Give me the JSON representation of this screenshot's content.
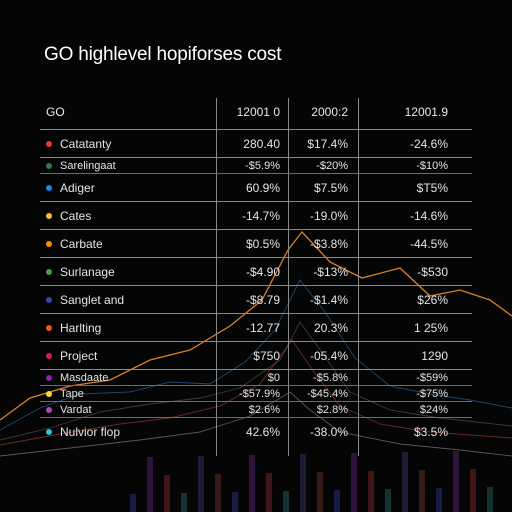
{
  "title": "GO highlevel hopiforses cost",
  "table": {
    "header": [
      "GO",
      "12001 0",
      "2000:2",
      "12001.9"
    ],
    "rows": [
      {
        "label": "Catatanty",
        "color": "#e53935",
        "v1": "280.40",
        "v2": "$17.4%",
        "v3": "-24.6%",
        "tight": false
      },
      {
        "label": "Sarelingaat",
        "color": "#2e7d4f",
        "v1": "-$5.9%",
        "v2": "-$20%",
        "v3": "-$10%",
        "tight": true
      },
      {
        "label": "Adiger",
        "color": "#1e88e5",
        "v1": "60.9%",
        "v2": "$7.5%",
        "v3": "$T5%",
        "tight": false
      },
      {
        "label": "Cates",
        "color": "#fbc02d",
        "v1": "-14.7%",
        "v2": "-19.0%",
        "v3": "-14.6%",
        "tight": false
      },
      {
        "label": "Carbate",
        "color": "#fb8c00",
        "v1": "$0.5%",
        "v2": "-$3.8%",
        "v3": "-44.5%",
        "tight": false
      },
      {
        "label": "Surlanage",
        "color": "#43a047",
        "v1": "-$4.90",
        "v2": "-$13%",
        "v3": "-$530",
        "tight": false
      },
      {
        "label": "Sanglet and",
        "color": "#3949ab",
        "v1": "-$8.79",
        "v2": "-$1.4%",
        "v3": "$26%",
        "tight": false
      },
      {
        "label": "Harlting",
        "color": "#f4511e",
        "v1": "-12.77",
        "v2": "20.3%",
        "v3": "1 25%",
        "tight": false
      },
      {
        "label": "Project",
        "color": "#d81b60",
        "v1": "$750",
        "v2": "-05.4%",
        "v3": "1290",
        "tight": false
      },
      {
        "label": "Masdaate",
        "color": "#8e24aa",
        "v1": "$0",
        "v2": "-$5.8%",
        "v3": "-$59%",
        "tight": true
      },
      {
        "label": "Tape",
        "color": "#fdd835",
        "v1": "-$57.9%",
        "v2": "-$45.4%",
        "v3": "-$75%",
        "tight": true
      },
      {
        "label": "Vardat",
        "color": "#ab47bc",
        "v1": "$2.6%",
        "v2": "$2.8%",
        "v3": "$24%",
        "tight": true
      },
      {
        "label": "Nulvior flop",
        "color": "#26c6da",
        "v1": "42.6%",
        "v2": "-38.0%",
        "v3": "$3.5%",
        "tight": false
      }
    ]
  },
  "chart_data": {
    "type": "table",
    "columns": [
      "GO",
      "12001 0",
      "2000:2",
      "12001.9"
    ],
    "rows": [
      [
        "Catatanty",
        "280.40",
        "$17.4%",
        "-24.6%"
      ],
      [
        "Sarelingaat",
        "-$5.9%",
        "-$20%",
        "-$10%"
      ],
      [
        "Adiger",
        "60.9%",
        "$7.5%",
        "$T5%"
      ],
      [
        "Cates",
        "-14.7%",
        "-19.0%",
        "-14.6%"
      ],
      [
        "Carbate",
        "$0.5%",
        "-$3.8%",
        "-44.5%"
      ],
      [
        "Surlanage",
        "-$4.90",
        "-$13%",
        "-$530"
      ],
      [
        "Sanglet and",
        "-$8.79",
        "-$1.4%",
        "$26%"
      ],
      [
        "Harlting",
        "-12.77",
        "20.3%",
        "1 25%"
      ],
      [
        "Project",
        "$750",
        "-05.4%",
        "1290"
      ],
      [
        "Masdaate",
        "$0",
        "-$5.8%",
        "-$59%"
      ],
      [
        "Tape",
        "-$57.9%",
        "-$45.4%",
        "-$75%"
      ],
      [
        "Vardat",
        "$2.6%",
        "$2.8%",
        "$24%"
      ],
      [
        "Nulvior flop",
        "42.6%",
        "-38.0%",
        "$3.5%"
      ]
    ],
    "title": "GO highlevel hopiforses cost",
    "background_lines": {
      "colors": [
        "#e8862a",
        "#3a7fc1",
        "#6a6a6a",
        "#c24a3a",
        "#9a9a9a"
      ],
      "peak_near_column": "2000:2"
    }
  }
}
